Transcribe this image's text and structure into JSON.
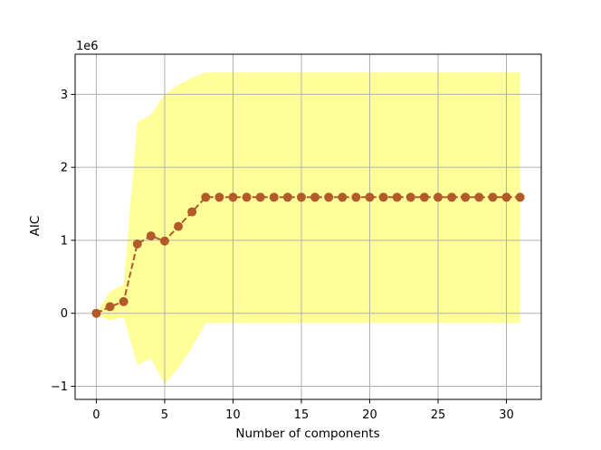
{
  "chart_data": {
    "type": "line",
    "xlabel": "Number of components",
    "ylabel": "AIC",
    "y_offset_label": "1e6",
    "xlim": [
      -1.55,
      32.55
    ],
    "ylim": [
      -1.18,
      3.55
    ],
    "x_ticks": [
      0,
      5,
      10,
      15,
      20,
      25,
      30
    ],
    "y_ticks": [
      -1,
      0,
      1,
      2,
      3
    ],
    "x_tick_labels": [
      "0",
      "5",
      "10",
      "15",
      "20",
      "25",
      "30"
    ],
    "y_tick_labels": [
      "−1",
      "0",
      "1",
      "2",
      "3"
    ],
    "grid": true,
    "x": [
      0,
      1,
      2,
      3,
      4,
      5,
      6,
      7,
      8,
      9,
      10,
      11,
      12,
      13,
      14,
      15,
      16,
      17,
      18,
      19,
      20,
      21,
      22,
      23,
      24,
      25,
      26,
      27,
      28,
      29,
      30,
      31
    ],
    "series": [
      {
        "values": [
          0.0,
          0.09,
          0.16,
          0.95,
          1.06,
          0.99,
          1.19,
          1.39,
          1.59,
          1.59,
          1.59,
          1.59,
          1.59,
          1.59,
          1.59,
          1.59,
          1.59,
          1.59,
          1.59,
          1.59,
          1.59,
          1.59,
          1.59,
          1.59,
          1.59,
          1.59,
          1.59,
          1.59,
          1.59,
          1.59,
          1.59,
          1.59
        ],
        "color": "#b35a2b",
        "line_style": "dashed",
        "marker": "circle"
      }
    ],
    "band": {
      "color": "#ffff99",
      "upper": [
        0.0,
        0.3,
        0.4,
        2.62,
        2.72,
        3.0,
        3.13,
        3.23,
        3.3,
        3.3,
        3.3,
        3.3,
        3.3,
        3.3,
        3.3,
        3.3,
        3.3,
        3.3,
        3.3,
        3.3,
        3.3,
        3.3,
        3.3,
        3.3,
        3.3,
        3.3,
        3.3,
        3.3,
        3.3,
        3.3,
        3.3,
        3.3
      ],
      "lower": [
        0.0,
        -0.1,
        -0.05,
        -0.71,
        -0.62,
        -0.97,
        -0.75,
        -0.47,
        -0.13,
        -0.13,
        -0.13,
        -0.13,
        -0.13,
        -0.13,
        -0.13,
        -0.13,
        -0.13,
        -0.13,
        -0.13,
        -0.13,
        -0.13,
        -0.13,
        -0.13,
        -0.13,
        -0.13,
        -0.13,
        -0.13,
        -0.13,
        -0.13,
        -0.13,
        -0.13,
        -0.13
      ]
    }
  }
}
